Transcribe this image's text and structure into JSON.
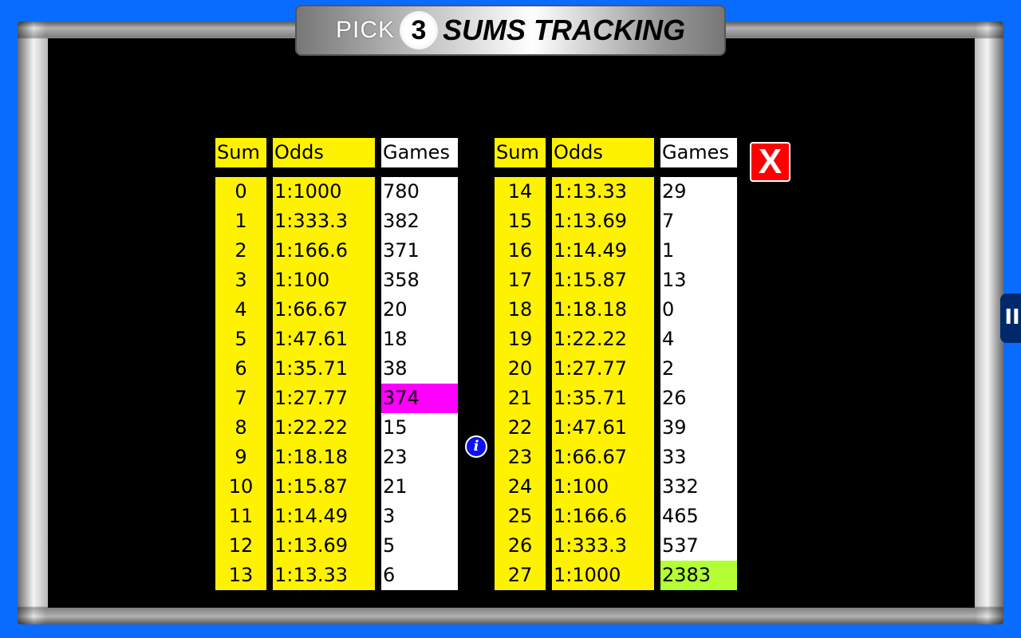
{
  "title": {
    "pick": "PICK",
    "number": "3",
    "rest": "SUMS TRACKING"
  },
  "headers": {
    "sum": "Sum",
    "odds": "Odds",
    "games": "Games"
  },
  "left": [
    {
      "sum": "0",
      "odds": "1:1000",
      "games": "780"
    },
    {
      "sum": "1",
      "odds": "1:333.3",
      "games": "382"
    },
    {
      "sum": "2",
      "odds": "1:166.6",
      "games": "371"
    },
    {
      "sum": "3",
      "odds": "1:100",
      "games": "358"
    },
    {
      "sum": "4",
      "odds": "1:66.67",
      "games": "20"
    },
    {
      "sum": "5",
      "odds": "1:47.61",
      "games": "18"
    },
    {
      "sum": "6",
      "odds": "1:35.71",
      "games": "38"
    },
    {
      "sum": "7",
      "odds": "1:27.77",
      "games": "374",
      "highlight": "#ff00ff"
    },
    {
      "sum": "8",
      "odds": "1:22.22",
      "games": "15"
    },
    {
      "sum": "9",
      "odds": "1:18.18",
      "games": "23"
    },
    {
      "sum": "10",
      "odds": "1:15.87",
      "games": "21"
    },
    {
      "sum": "11",
      "odds": "1:14.49",
      "games": "3"
    },
    {
      "sum": "12",
      "odds": "1:13.69",
      "games": "5"
    },
    {
      "sum": "13",
      "odds": "1:13.33",
      "games": "6"
    }
  ],
  "right": [
    {
      "sum": "14",
      "odds": "1:13.33",
      "games": "29"
    },
    {
      "sum": "15",
      "odds": "1:13.69",
      "games": "7"
    },
    {
      "sum": "16",
      "odds": "1:14.49",
      "games": "1"
    },
    {
      "sum": "17",
      "odds": "1:15.87",
      "games": "13"
    },
    {
      "sum": "18",
      "odds": "1:18.18",
      "games": "0"
    },
    {
      "sum": "19",
      "odds": "1:22.22",
      "games": "4"
    },
    {
      "sum": "20",
      "odds": "1:27.77",
      "games": "2"
    },
    {
      "sum": "21",
      "odds": "1:35.71",
      "games": "26"
    },
    {
      "sum": "22",
      "odds": "1:47.61",
      "games": "39"
    },
    {
      "sum": "23",
      "odds": "1:66.67",
      "games": "33"
    },
    {
      "sum": "24",
      "odds": "1:100",
      "games": "332"
    },
    {
      "sum": "25",
      "odds": "1:166.6",
      "games": "465"
    },
    {
      "sum": "26",
      "odds": "1:333.3",
      "games": "537"
    },
    {
      "sum": "27",
      "odds": "1:1000",
      "games": "2383",
      "highlight": "#b3ff33"
    }
  ],
  "buttons": {
    "close": "X",
    "info": "i",
    "handle": "II"
  },
  "icons": {
    "close": "close-icon",
    "info": "info-icon",
    "handle": "drag-handle-icon"
  }
}
